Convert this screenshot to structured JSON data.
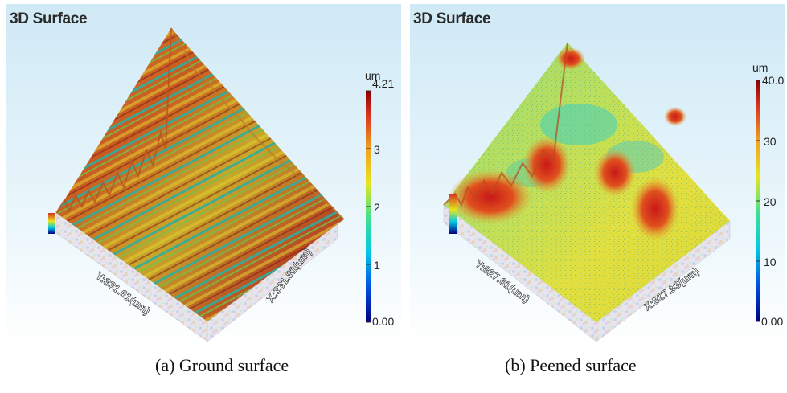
{
  "panels": [
    {
      "title": "3D Surface",
      "caption": "(a) Ground surface",
      "colorbar": {
        "unit": "um",
        "ticks": [
          "4.21",
          "3",
          "2",
          "1",
          "0.00"
        ]
      },
      "axes": {
        "x_label": "X:331.81(um)",
        "y_label": "Y:331.61(um)"
      }
    },
    {
      "title": "3D Surface",
      "caption": "(b) Peened surface",
      "colorbar": {
        "unit": "um",
        "ticks": [
          "40.0",
          "30",
          "20",
          "10",
          "0.00"
        ]
      },
      "axes": {
        "x_label": "X:827.93(um)",
        "y_label": "Y:827.61(um)"
      }
    }
  ],
  "colors": {
    "background_top": "#d4ecf7",
    "background_bottom": "#ffffff",
    "colormap": [
      "#000080",
      "#0050e0",
      "#00c8e6",
      "#40e090",
      "#e6e61e",
      "#f0a020",
      "#d73020",
      "#8b0000"
    ]
  }
}
